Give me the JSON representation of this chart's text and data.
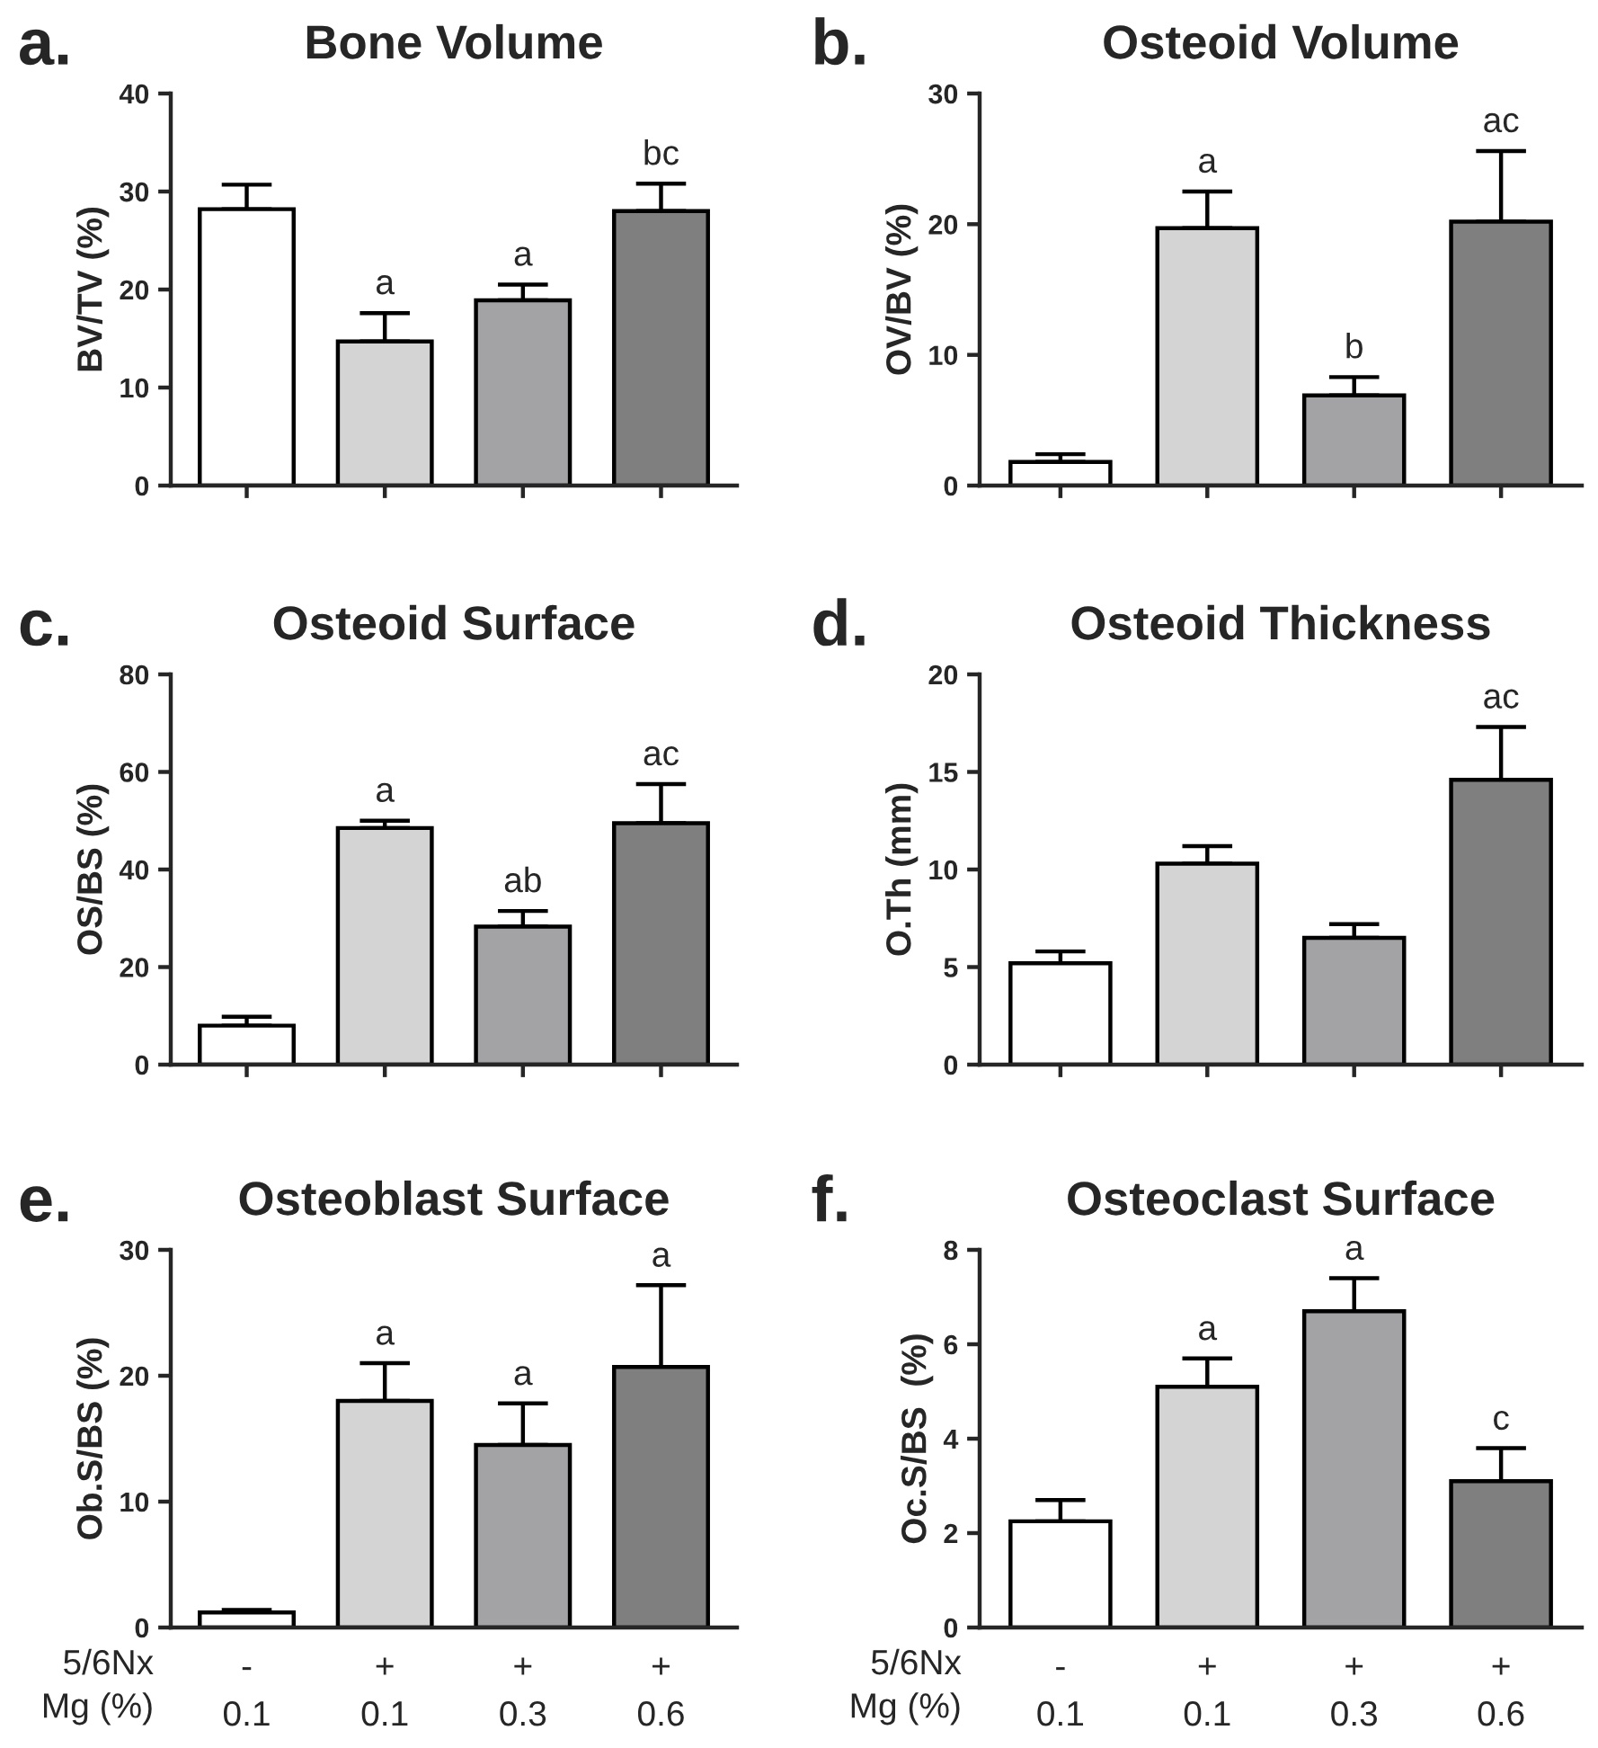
{
  "chart_data": [
    {
      "type": "bar",
      "title": "Bone Volume",
      "ylabel": "BV/TV (%)",
      "annotations": [
        "a."
      ],
      "categories": [
        null,
        null,
        null,
        null
      ],
      "values": [
        28.2,
        14.7,
        18.9,
        28
      ],
      "errors": [
        [
          28.2,
          30.7
        ],
        [
          14.7,
          17.6
        ],
        [
          18.9,
          20.5
        ],
        [
          28,
          30.8
        ]
      ],
      "colors": [
        "#ffffff",
        "#d4d4d4",
        "#a3a3a6",
        "#7f7f7f"
      ],
      "value_labels": [
        null,
        "a",
        "a",
        "bc"
      ],
      "ylim": [
        0,
        40
      ],
      "yticks": [
        0,
        10,
        20,
        30,
        40
      ],
      "tick_labels": "y",
      "grid": false,
      "legend": false
    },
    {
      "type": "bar",
      "title": "Osteoid Volume",
      "ylabel": "OV/BV (%)",
      "annotations": [
        "b."
      ],
      "categories": [
        null,
        null,
        null,
        null
      ],
      "values": [
        1.8,
        19.7,
        6.9,
        20.2
      ],
      "errors": [
        [
          1.8,
          2.4
        ],
        [
          19.7,
          22.5
        ],
        [
          6.9,
          8.3
        ],
        [
          20.2,
          25.6
        ]
      ],
      "colors": [
        "#ffffff",
        "#d4d4d4",
        "#a3a3a6",
        "#7f7f7f"
      ],
      "value_labels": [
        null,
        "a",
        "b",
        "ac"
      ],
      "ylim": [
        0,
        30
      ],
      "yticks": [
        0,
        10,
        20,
        30
      ],
      "tick_labels": "y",
      "grid": false,
      "legend": false
    },
    {
      "type": "bar",
      "title": "Osteoid Surface",
      "ylabel": "OS/BS (%)",
      "annotations": [
        "c."
      ],
      "categories": [
        null,
        null,
        null,
        null
      ],
      "values": [
        8,
        48.5,
        28.3,
        49.5
      ],
      "errors": [
        [
          8,
          9.8
        ],
        [
          48.5,
          50
        ],
        [
          28.3,
          31.5
        ],
        [
          49.5,
          57.5
        ]
      ],
      "colors": [
        "#ffffff",
        "#d4d4d4",
        "#a3a3a6",
        "#7f7f7f"
      ],
      "value_labels": [
        null,
        "a",
        "ab",
        "ac"
      ],
      "ylim": [
        0,
        80
      ],
      "yticks": [
        0,
        20,
        40,
        60,
        80
      ],
      "tick_labels": "y",
      "grid": false,
      "legend": false
    },
    {
      "type": "bar",
      "title": "Osteoid Thickness",
      "ylabel": "O.Th (mm)",
      "annotations": [
        "d."
      ],
      "categories": [
        null,
        null,
        null,
        null
      ],
      "values": [
        5.2,
        10.3,
        6.5,
        14.6
      ],
      "errors": [
        [
          5.2,
          5.8
        ],
        [
          10.3,
          11.2
        ],
        [
          6.5,
          7.2
        ],
        [
          14.6,
          17.3
        ]
      ],
      "colors": [
        "#ffffff",
        "#d4d4d4",
        "#a3a3a6",
        "#7f7f7f"
      ],
      "value_labels": [
        null,
        null,
        null,
        "ac"
      ],
      "ylim": [
        0,
        20
      ],
      "yticks": [
        0,
        5,
        10,
        15,
        20
      ],
      "tick_labels": "y",
      "grid": false,
      "legend": false
    },
    {
      "type": "bar",
      "title": "Osteoblast Surface",
      "ylabel": "Ob.S/BS (%)",
      "annotations": [
        "e.",
        "5/6Nx",
        "Mg (%)"
      ],
      "categories": [
        "-\n0.1",
        "+\n0.1",
        "+\n0.3",
        "+\n0.6"
      ],
      "values": [
        1.2,
        18,
        14.5,
        20.7
      ],
      "errors": [
        [
          1.2,
          1.4
        ],
        [
          18,
          21
        ],
        [
          14.5,
          17.8
        ],
        [
          20.7,
          27.2
        ]
      ],
      "colors": [
        "#ffffff",
        "#d4d4d4",
        "#a3a3a6",
        "#7f7f7f"
      ],
      "value_labels": [
        null,
        "a",
        "a",
        "a"
      ],
      "ylim": [
        0,
        30
      ],
      "yticks": [
        0,
        10,
        20,
        30
      ],
      "grid": false,
      "legend": false
    },
    {
      "type": "bar",
      "title": "Osteoclast Surface",
      "ylabel": "Oc.S/BS  (%)",
      "annotations": [
        "f.",
        "5/6Nx",
        "Mg (%)"
      ],
      "categories": [
        "-\n0.1",
        "+\n0.1",
        "+\n0.3",
        "+\n0.6"
      ],
      "values": [
        2.25,
        5.1,
        6.7,
        3.1
      ],
      "errors": [
        [
          2.25,
          2.7
        ],
        [
          5.1,
          5.7
        ],
        [
          6.7,
          7.4
        ],
        [
          3.1,
          3.8
        ]
      ],
      "colors": [
        "#ffffff",
        "#d4d4d4",
        "#a3a3a6",
        "#7f7f7f"
      ],
      "value_labels": [
        null,
        "a",
        "a",
        "c"
      ],
      "ylim": [
        0,
        8
      ],
      "yticks": [
        0,
        2,
        4,
        6,
        8
      ],
      "grid": false,
      "legend": false
    }
  ]
}
